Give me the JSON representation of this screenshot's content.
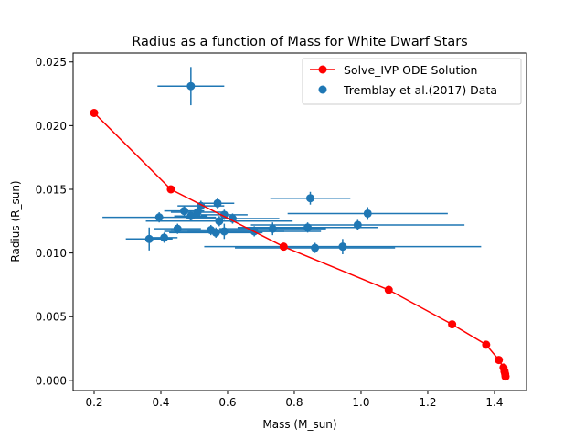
{
  "chart_data": {
    "type": "scatter",
    "title": "Radius as a function of Mass for White Dwarf Stars",
    "xlabel": "Mass (M_sun)",
    "ylabel": "Radius (R_sun)",
    "xlim": [
      0.137,
      1.496
    ],
    "ylim": [
      -0.0008,
      0.0257
    ],
    "xticks": [
      0.2,
      0.4,
      0.6,
      0.8,
      1.0,
      1.2,
      1.4
    ],
    "xtick_labels": [
      "0.2",
      "0.4",
      "0.6",
      "0.8",
      "1.0",
      "1.2",
      "1.4"
    ],
    "yticks": [
      0.0,
      0.005,
      0.01,
      0.015,
      0.02,
      0.025
    ],
    "ytick_labels": [
      "0.000",
      "0.005",
      "0.010",
      "0.015",
      "0.020",
      "0.025"
    ],
    "grid": false,
    "legend_position": "top-right",
    "series": [
      {
        "name": "Solve_IVP ODE Solution",
        "kind": "line",
        "color": "#ff0000",
        "marker": "circle",
        "points": [
          [
            0.2,
            0.021
          ],
          [
            0.43,
            0.015
          ],
          [
            0.768,
            0.0105
          ],
          [
            1.083,
            0.0071
          ],
          [
            1.273,
            0.0044
          ],
          [
            1.375,
            0.0028
          ],
          [
            1.413,
            0.0016
          ],
          [
            1.427,
            0.001
          ],
          [
            1.43,
            0.0007
          ],
          [
            1.432,
            0.0005
          ],
          [
            1.433,
            0.0003
          ]
        ]
      },
      {
        "name": "Tremblay et al.(2017) Data",
        "kind": "scatter_errorbar",
        "color": "#1f77b4",
        "points": [
          {
            "x": 0.49,
            "y": 0.0231,
            "xerr": 0.1,
            "yerr": 0.0015
          },
          {
            "x": 0.848,
            "y": 0.0143,
            "xerr": 0.12,
            "yerr": 0.0005
          },
          {
            "x": 1.02,
            "y": 0.0131,
            "xerr": 0.24,
            "yerr": 0.0005
          },
          {
            "x": 0.52,
            "y": 0.0137,
            "xerr": 0.07,
            "yerr": 0.0004
          },
          {
            "x": 0.57,
            "y": 0.0139,
            "xerr": 0.05,
            "yerr": 0.0004
          },
          {
            "x": 0.47,
            "y": 0.0133,
            "xerr": 0.06,
            "yerr": 0.0004
          },
          {
            "x": 0.51,
            "y": 0.0132,
            "xerr": 0.08,
            "yerr": 0.0004
          },
          {
            "x": 0.49,
            "y": 0.0129,
            "xerr": 0.05,
            "yerr": 0.0004
          },
          {
            "x": 0.59,
            "y": 0.013,
            "xerr": 0.07,
            "yerr": 0.0004
          },
          {
            "x": 0.395,
            "y": 0.0128,
            "xerr": 0.17,
            "yerr": 0.0004
          },
          {
            "x": 0.615,
            "y": 0.0127,
            "xerr": 0.14,
            "yerr": 0.0004
          },
          {
            "x": 0.575,
            "y": 0.0125,
            "xerr": 0.22,
            "yerr": 0.0004
          },
          {
            "x": 0.99,
            "y": 0.0122,
            "xerr": 0.32,
            "yerr": 0.0004
          },
          {
            "x": 0.84,
            "y": 0.012,
            "xerr": 0.21,
            "yerr": 0.0004
          },
          {
            "x": 0.735,
            "y": 0.0119,
            "xerr": 0.16,
            "yerr": 0.0005
          },
          {
            "x": 0.45,
            "y": 0.0119,
            "xerr": 0.07,
            "yerr": 0.0004
          },
          {
            "x": 0.55,
            "y": 0.0118,
            "xerr": 0.12,
            "yerr": 0.0004
          },
          {
            "x": 0.59,
            "y": 0.0117,
            "xerr": 0.18,
            "yerr": 0.0006
          },
          {
            "x": 0.68,
            "y": 0.0117,
            "xerr": 0.2,
            "yerr": 0.0004
          },
          {
            "x": 0.565,
            "y": 0.0116,
            "xerr": 0.14,
            "yerr": 0.0004
          },
          {
            "x": 0.365,
            "y": 0.0111,
            "xerr": 0.07,
            "yerr": 0.0009
          },
          {
            "x": 0.41,
            "y": 0.0112,
            "xerr": 0.04,
            "yerr": 0.0004
          },
          {
            "x": 0.862,
            "y": 0.0104,
            "xerr": 0.24,
            "yerr": 0.0004
          },
          {
            "x": 0.945,
            "y": 0.0105,
            "xerr": 0.415,
            "yerr": 0.0006
          }
        ]
      }
    ]
  }
}
